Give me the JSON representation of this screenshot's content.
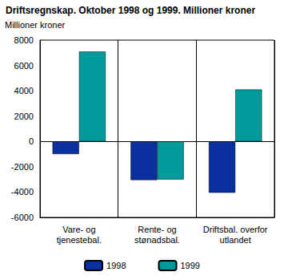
{
  "chart_data": {
    "type": "bar",
    "title": "Driftsregnskap. Oktober 1998 og 1999. Millioner kroner",
    "y_label": "Millioner kroner",
    "categories": [
      "Vare- og\ntjenestebal.",
      "Rente- og\nstønadsbal.",
      "Driftsbal. overfor\nutlandet"
    ],
    "series": [
      {
        "name": "1998",
        "color": "#0a2f9e",
        "values": [
          -1000,
          -3050,
          -4050
        ]
      },
      {
        "name": "1999",
        "color": "#009a9a",
        "values": [
          7100,
          -3000,
          4100
        ]
      }
    ],
    "ylim": [
      -6000,
      8000
    ],
    "yticks": [
      -6000,
      -4000,
      -2000,
      0,
      2000,
      4000,
      6000,
      8000
    ],
    "grid": false,
    "legend": "bottom"
  }
}
